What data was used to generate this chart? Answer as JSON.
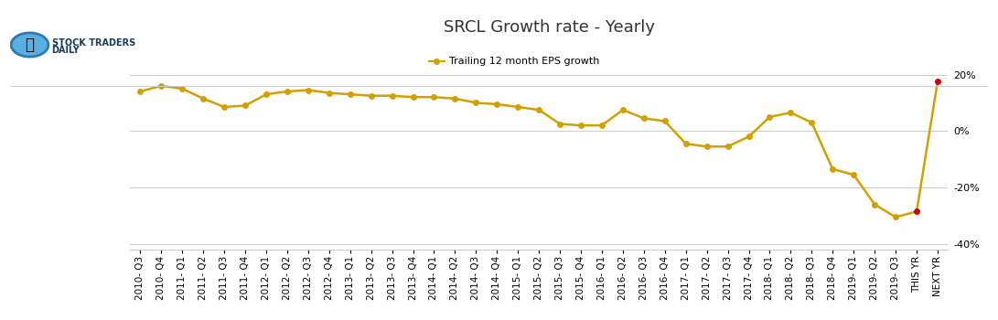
{
  "title": "SRCL Growth rate - Yearly",
  "legend_label": "Trailing 12 month EPS growth",
  "x_labels": [
    "2010- Q3",
    "2010- Q4",
    "2011- Q1",
    "2011- Q2",
    "2011- Q3",
    "2011- Q4",
    "2012- Q1",
    "2012- Q2",
    "2012- Q3",
    "2012- Q4",
    "2013- Q1",
    "2013- Q2",
    "2013- Q3",
    "2013- Q4",
    "2014- Q1",
    "2014- Q2",
    "2014- Q3",
    "2014- Q4",
    "2015- Q1",
    "2015- Q2",
    "2015- Q3",
    "2015- Q4",
    "2016- Q1",
    "2016- Q2",
    "2016- Q3",
    "2016- Q4",
    "2017- Q1",
    "2017- Q2",
    "2017- Q3",
    "2017- Q4",
    "2018- Q1",
    "2018- Q2",
    "2018- Q3",
    "2018- Q4",
    "2019- Q1",
    "2019- Q2",
    "2019- Q3",
    "THIS YR",
    "NEXT YR"
  ],
  "values": [
    14.0,
    16.0,
    15.0,
    11.5,
    8.5,
    9.0,
    13.0,
    14.0,
    14.5,
    13.5,
    13.0,
    12.5,
    12.5,
    12.0,
    12.0,
    11.5,
    10.0,
    9.5,
    8.5,
    7.5,
    2.5,
    2.0,
    2.0,
    7.5,
    4.5,
    3.5,
    -4.5,
    -5.5,
    -5.5,
    -2.0,
    5.0,
    6.5,
    3.0,
    -13.5,
    -15.5,
    -26.0,
    -30.5,
    -28.5,
    17.5
  ],
  "line_color": "#D4A000",
  "marker_color": "#D4A000",
  "special_color": "#CC0000",
  "special_indices": [
    37,
    38
  ],
  "background_color": "#ffffff",
  "grid_color": "#cccccc",
  "ylim": [
    -42,
    26
  ],
  "yticks": [
    -40,
    -20,
    0,
    20
  ],
  "title_fontsize": 13,
  "tick_fontsize": 7.5,
  "marker_size": 5
}
